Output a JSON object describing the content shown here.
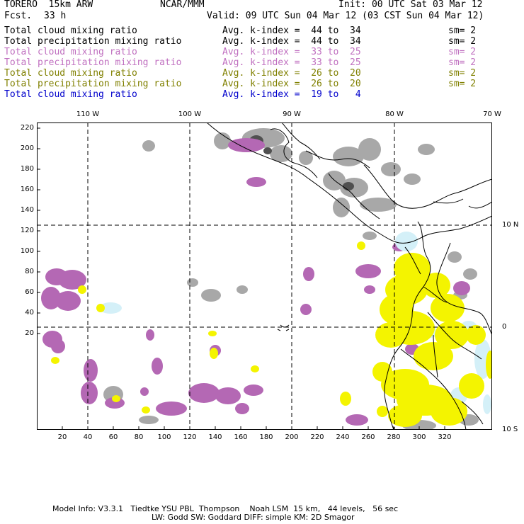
{
  "header": {
    "model": "TORERO  15km ARW",
    "institution": "NCAR/MMM",
    "init": "Init: 00 UTC Sat 03 Mar 12",
    "fcst_label": "Fcst.",
    "fcst_hours": "33 h",
    "valid": "Valid: 09 UTC Sun 04 Mar 12 (03 CST Sun 04 Mar 12)"
  },
  "fields": [
    {
      "name": "Total cloud mixing ratio",
      "stat": "Avg. k-index =  44 to  34",
      "sm": "sm= 2",
      "color": "#000000"
    },
    {
      "name": "Total precipitation mixing ratio",
      "stat": "Avg. k-index =  44 to  34",
      "sm": "sm= 2",
      "color": "#000000"
    },
    {
      "name": "Total cloud mixing ratio",
      "stat": "Avg. k-index =  33 to  25",
      "sm": "sm= 2",
      "color": "#c070c0"
    },
    {
      "name": "Total precipitation mixing ratio",
      "stat": "Avg. k-index =  33 to  25",
      "sm": "sm= 2",
      "color": "#c070c0"
    },
    {
      "name": "Total cloud mixing ratio",
      "stat": "Avg. k-index =  26 to  20",
      "sm": "sm= 2",
      "color": "#808000"
    },
    {
      "name": "Total precipitation mixing ratio",
      "stat": "Avg. k-index =  26 to  20",
      "sm": "sm= 2",
      "color": "#808000"
    },
    {
      "name": "Total cloud mixing ratio",
      "stat": "Avg. k-index =  19 to   4",
      "sm": "",
      "color": "#0000cc"
    }
  ],
  "axes": {
    "top_lon_labels": [
      "110 W",
      "100 W",
      "90 W",
      "80 W",
      "70 W"
    ],
    "right_lat_labels": [
      "10 N",
      "0",
      "10 S"
    ],
    "left_ticks": [
      "220",
      "200",
      "180",
      "160",
      "140",
      "120",
      "100",
      "80",
      "60",
      "40",
      "20"
    ],
    "bottom_ticks": [
      "20",
      "40",
      "60",
      "80",
      "100",
      "120",
      "140",
      "160",
      "180",
      "200",
      "220",
      "240",
      "260",
      "280",
      "300",
      "320"
    ]
  },
  "footer": {
    "line1": "Model Info: V3.3.1   Tiedtke YSU PBL  Thompson    Noah LSM  15 km,   44 levels,   56 sec",
    "line2": "LW: Godd SW: Goddard DIFF: simple KM: 2D Smagor"
  },
  "colors": {
    "gray_cloud": "#a0a0a0",
    "gray_dark": "#505050",
    "purple": "#b468b4",
    "yellow": "#f4f400",
    "light_yellow": "#fafa9c",
    "light_blue": "#d4f0f8"
  }
}
